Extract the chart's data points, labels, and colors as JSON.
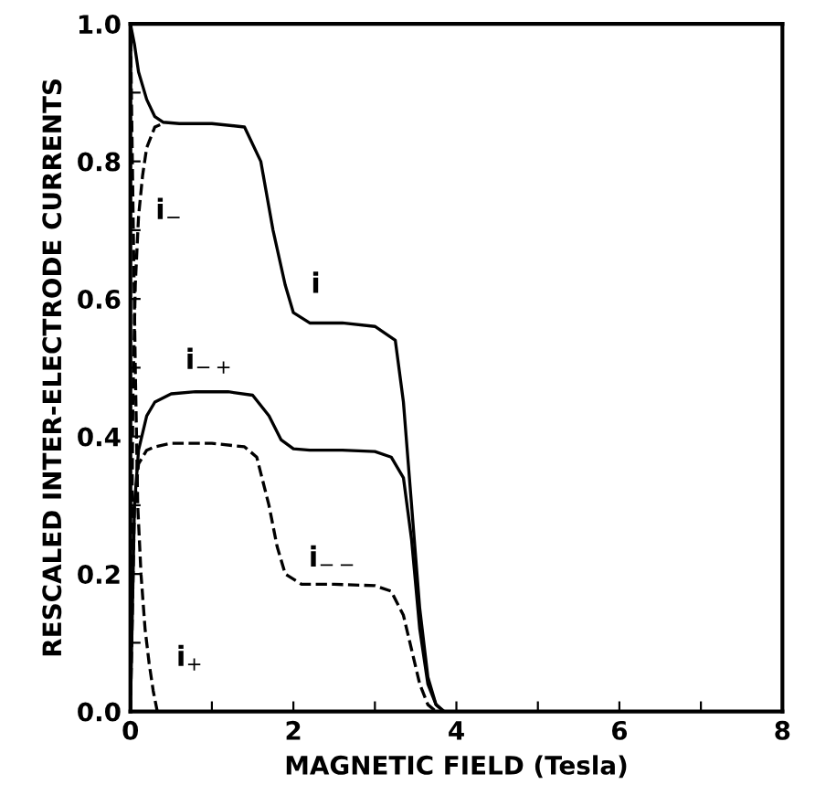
{
  "chart_data": {
    "type": "line",
    "xlabel": "MAGNETIC FIELD (Tesla)",
    "ylabel": "RESCALED INTER-ELECTRODE CURRENTS",
    "xlim": [
      0,
      8
    ],
    "xticks": [
      0,
      {
        "value": 1,
        "label": null
      },
      2,
      {
        "value": 3,
        "label": null
      },
      4,
      {
        "value": 5,
        "label": null
      },
      6,
      {
        "value": 7,
        "label": null
      },
      8
    ],
    "ylim": [
      0,
      1.0
    ],
    "yticks": [
      {
        "value": 0,
        "label": "0.0"
      },
      {
        "value": 0.1,
        "label": null
      },
      0.2,
      {
        "value": 0.3,
        "label": null
      },
      0.4,
      {
        "value": 0.5,
        "label": null
      },
      0.6,
      {
        "value": 0.7,
        "label": null
      },
      0.8,
      {
        "value": 0.9,
        "label": null
      },
      {
        "value": 1.0,
        "label": "1.0"
      }
    ],
    "grid": false,
    "legend": false,
    "series": [
      {
        "name": "i",
        "color": "#000000",
        "line_style": "solid",
        "x": [
          0,
          0.05,
          0.1,
          0.2,
          0.3,
          0.4,
          0.6,
          1.0,
          1.4,
          1.6,
          1.75,
          1.9,
          2.0,
          2.2,
          2.6,
          3.0,
          3.25,
          3.35,
          3.45,
          3.55,
          3.65,
          3.75,
          3.85,
          4.0
        ],
        "values": [
          1.0,
          0.97,
          0.93,
          0.89,
          0.865,
          0.857,
          0.855,
          0.855,
          0.85,
          0.8,
          0.7,
          0.62,
          0.58,
          0.565,
          0.565,
          0.56,
          0.54,
          0.45,
          0.3,
          0.15,
          0.05,
          0.01,
          0,
          0
        ]
      },
      {
        "name": "i$_{−}$",
        "color": "#000000",
        "line_style": "dashed",
        "x": [
          0,
          0.03,
          0.06,
          0.1,
          0.15,
          0.2,
          0.3,
          0.4
        ],
        "values": [
          0,
          0.45,
          0.62,
          0.72,
          0.78,
          0.82,
          0.85,
          0.855
        ]
      },
      {
        "name": "i$_{−+}$",
        "color": "#000000",
        "line_style": "solid",
        "x": [
          0,
          0.05,
          0.1,
          0.2,
          0.3,
          0.5,
          0.8,
          1.2,
          1.5,
          1.7,
          1.85,
          2.0,
          2.2,
          2.6,
          3.0,
          3.2,
          3.35,
          3.45,
          3.55,
          3.65,
          3.75,
          3.85
        ],
        "values": [
          0,
          0.3,
          0.38,
          0.43,
          0.45,
          0.462,
          0.465,
          0.465,
          0.46,
          0.43,
          0.395,
          0.382,
          0.38,
          0.38,
          0.378,
          0.37,
          0.34,
          0.25,
          0.12,
          0.04,
          0.01,
          0
        ]
      },
      {
        "name": "i$_{−−}$",
        "color": "#000000",
        "line_style": "dashed",
        "x": [
          0,
          0.05,
          0.1,
          0.2,
          0.3,
          0.5,
          1.0,
          1.4,
          1.55,
          1.7,
          1.8,
          1.9,
          2.1,
          2.5,
          3.0,
          3.2,
          3.35,
          3.45,
          3.55,
          3.65,
          3.75
        ],
        "values": [
          0,
          0.3,
          0.36,
          0.38,
          0.385,
          0.39,
          0.39,
          0.385,
          0.37,
          0.3,
          0.24,
          0.2,
          0.185,
          0.185,
          0.183,
          0.175,
          0.14,
          0.09,
          0.04,
          0.01,
          0
        ]
      },
      {
        "name": "i$_{+}$",
        "color": "#000000",
        "line_style": "dashed",
        "x": [
          0,
          0.03,
          0.06,
          0.09,
          0.13,
          0.18,
          0.23,
          0.28,
          0.33
        ],
        "values": [
          1.0,
          0.75,
          0.5,
          0.3,
          0.2,
          0.12,
          0.07,
          0.03,
          0
        ]
      }
    ]
  }
}
